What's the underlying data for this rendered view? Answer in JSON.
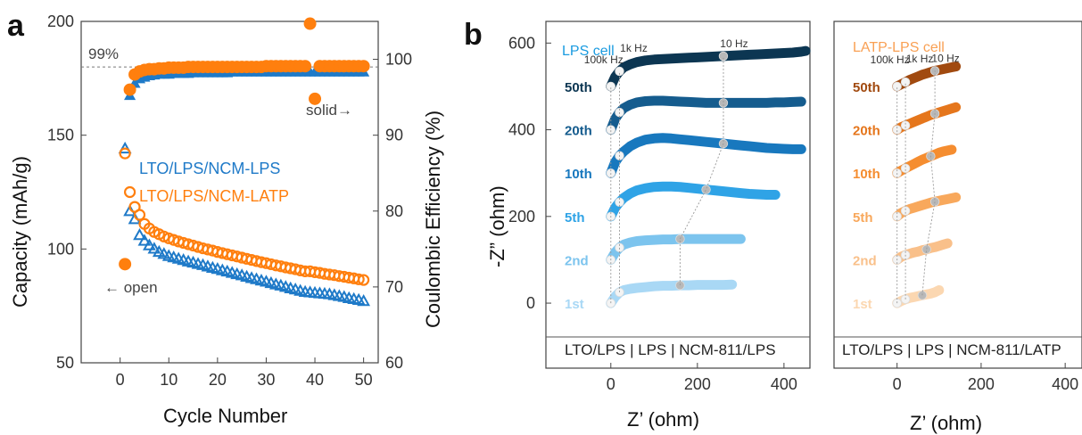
{
  "colors": {
    "blue": "#1f7ac8",
    "orange": "#ff7f0e",
    "lps_cycle_colors": [
      "#a9d8f5",
      "#7cc4ee",
      "#2fa3e6",
      "#1878be",
      "#155c8e",
      "#0c3652"
    ],
    "latp_cycle_colors": [
      "#fbd7b1",
      "#f9c08a",
      "#f8a85c",
      "#f58d30",
      "#e5761c",
      "#a14a10"
    ]
  },
  "chart_data": [
    {
      "type": "scatter",
      "panel_label": "a",
      "xlabel": "Cycle Number",
      "ylabel": "Capacity (mAh/g)",
      "ylabel_right": "Coulombic Efficiency (%)",
      "xlim": [
        -8,
        53
      ],
      "ylim": [
        50,
        200
      ],
      "ylim_right": [
        60,
        105
      ],
      "xticks": [
        0,
        10,
        20,
        30,
        40,
        50
      ],
      "yticks": [
        50,
        100,
        150,
        200
      ],
      "yticks_right": [
        60,
        70,
        80,
        90,
        100
      ],
      "reference_line": {
        "label": "99%",
        "value": 99
      },
      "annotations": {
        "open": "← open",
        "solid": "solid→"
      },
      "series": [
        {
          "name": "LTO/LPS/NCM-LPS",
          "marker": "triangle",
          "axis": "left",
          "x": [
            1,
            2,
            3,
            4,
            5,
            6,
            7,
            8,
            9,
            10,
            11,
            12,
            13,
            14,
            15,
            16,
            17,
            18,
            19,
            20,
            21,
            22,
            23,
            24,
            25,
            26,
            27,
            28,
            29,
            30,
            31,
            32,
            33,
            34,
            35,
            36,
            37,
            38,
            39,
            40,
            41,
            42,
            43,
            44,
            45,
            46,
            47,
            48,
            49,
            50
          ],
          "values": [
            144.0,
            116.5,
            113.0,
            106.0,
            103.5,
            101.5,
            100.0,
            98.6,
            97.7,
            96.8,
            96.2,
            95.6,
            95.0,
            94.4,
            93.9,
            93.3,
            92.8,
            92.2,
            91.6,
            91.1,
            90.5,
            90.0,
            89.4,
            88.8,
            88.3,
            87.7,
            87.1,
            86.6,
            86.0,
            85.5,
            84.9,
            84.3,
            83.8,
            83.2,
            82.6,
            82.1,
            81.5,
            81.0,
            80.8,
            80.6,
            80.4,
            80.2,
            80.0,
            79.6,
            79.2,
            78.8,
            78.3,
            77.9,
            77.5,
            77.0
          ]
        },
        {
          "name": "LTO/LPS/NCM-LATP",
          "marker": "circle",
          "axis": "left",
          "x": [
            1,
            2,
            3,
            4,
            5,
            6,
            7,
            8,
            9,
            10,
            11,
            12,
            13,
            14,
            15,
            16,
            17,
            18,
            19,
            20,
            21,
            22,
            23,
            24,
            25,
            26,
            27,
            28,
            29,
            30,
            31,
            32,
            33,
            34,
            35,
            36,
            37,
            38,
            39,
            40,
            41,
            42,
            43,
            44,
            45,
            46,
            47,
            48,
            49,
            50
          ],
          "values": [
            142.0,
            125.0,
            118.5,
            115.0,
            111.0,
            109.0,
            107.5,
            106.5,
            105.5,
            104.7,
            104.0,
            103.3,
            102.7,
            102.1,
            101.5,
            100.9,
            100.3,
            99.8,
            99.3,
            98.7,
            98.2,
            97.7,
            97.2,
            96.7,
            96.2,
            95.7,
            95.2,
            94.7,
            94.2,
            93.8,
            93.3,
            92.8,
            92.4,
            91.9,
            91.5,
            91.1,
            90.6,
            90.2,
            90.2,
            89.8,
            89.5,
            89.1,
            88.8,
            88.5,
            88.1,
            87.8,
            87.4,
            87.1,
            86.7,
            86.4
          ]
        },
        {
          "name": "LTO/LPS/NCM-LPS Coulombic efficiency",
          "marker": "filled-triangle",
          "axis": "right",
          "x": [
            2,
            3,
            4,
            5,
            6,
            7,
            8,
            9,
            10,
            11,
            12,
            13,
            14,
            15,
            16,
            17,
            18,
            19,
            20,
            21,
            22,
            23,
            24,
            25,
            26,
            27,
            28,
            29,
            30,
            31,
            32,
            33,
            34,
            35,
            36,
            37,
            38,
            39,
            40,
            41,
            42,
            43,
            44,
            45,
            46,
            47,
            48,
            49,
            50
          ],
          "values": [
            95.2,
            96.8,
            97.4,
            97.6,
            97.8,
            97.9,
            98.0,
            98.0,
            98.0,
            98.1,
            98.1,
            98.1,
            98.1,
            98.2,
            98.2,
            98.2,
            98.2,
            98.2,
            98.2,
            98.2,
            98.2,
            98.3,
            98.3,
            98.3,
            98.3,
            98.3,
            98.3,
            98.3,
            98.3,
            98.3,
            98.3,
            98.3,
            98.3,
            98.3,
            98.3,
            98.3,
            98.3,
            98.3,
            98.3,
            98.3,
            98.3,
            98.3,
            98.3,
            98.3,
            98.3,
            98.3,
            98.3,
            98.3,
            98.3
          ]
        },
        {
          "name": "LTO/LPS/NCM-LATP Coulombic efficiency",
          "marker": "filled-circle",
          "axis": "right",
          "x": [
            1,
            2,
            3,
            4,
            5,
            6,
            7,
            8,
            9,
            10,
            11,
            12,
            13,
            14,
            15,
            16,
            17,
            18,
            19,
            20,
            21,
            22,
            23,
            24,
            25,
            26,
            27,
            28,
            29,
            30,
            31,
            32,
            33,
            34,
            35,
            36,
            37,
            38,
            39,
            40,
            41,
            42,
            43,
            44,
            45,
            46,
            47,
            48,
            49,
            50
          ],
          "values": [
            73.0,
            96.0,
            98.0,
            98.4,
            98.6,
            98.7,
            98.7,
            98.8,
            98.8,
            98.9,
            98.9,
            98.9,
            98.9,
            99.0,
            99.0,
            99.0,
            99.0,
            99.0,
            99.0,
            99.0,
            99.0,
            99.0,
            99.0,
            99.0,
            99.0,
            99.0,
            99.0,
            99.0,
            99.0,
            99.1,
            99.1,
            99.1,
            99.1,
            99.1,
            99.1,
            99.1,
            99.1,
            99.1,
            104.7,
            94.8,
            99.1,
            99.1,
            99.1,
            99.1,
            99.1,
            99.1,
            99.1,
            99.1,
            99.1,
            99.1
          ]
        }
      ]
    },
    {
      "type": "scatter",
      "panel_label": "b",
      "title": "LPS cell",
      "xlabel": "Z’ (ohm)",
      "ylabel": "-Z” (ohm)",
      "xlim": [
        -150,
        460
      ],
      "ylim": [
        -150,
        650
      ],
      "xticks": [
        0,
        200,
        400
      ],
      "yticks": [
        0,
        200,
        400,
        600
      ],
      "bottom_label": "LTO/LPS | LPS | NCM-811/LPS",
      "frequency_labels": [
        {
          "text": "100k Hz"
        },
        {
          "text": "1k Hz"
        },
        {
          "text": "10 Hz"
        }
      ],
      "series": [
        {
          "name": "1st",
          "offset": 0,
          "x": [
            0,
            10,
            20,
            30,
            45,
            60,
            80,
            100,
            120,
            140,
            160,
            180,
            200,
            220,
            240,
            260,
            280
          ],
          "values": [
            0,
            15,
            25,
            30,
            33,
            35,
            37,
            39,
            40,
            40,
            41,
            41,
            42,
            42,
            42,
            42,
            43
          ]
        },
        {
          "name": "2nd",
          "offset": 100,
          "x": [
            0,
            10,
            20,
            30,
            45,
            60,
            80,
            100,
            120,
            140,
            160,
            180,
            200,
            220,
            240,
            260,
            280,
            300
          ],
          "values": [
            100,
            117,
            128,
            135,
            140,
            143,
            145,
            146,
            147,
            147,
            148,
            148,
            148,
            148,
            148,
            148,
            148,
            148
          ]
        },
        {
          "name": "5th",
          "offset": 200,
          "x": [
            0,
            10,
            20,
            30,
            45,
            60,
            80,
            100,
            120,
            140,
            160,
            180,
            200,
            220,
            240,
            260,
            280,
            300,
            320,
            340,
            360,
            380
          ],
          "values": [
            200,
            220,
            233,
            243,
            253,
            260,
            265,
            268,
            269,
            269,
            268,
            266,
            264,
            262,
            260,
            258,
            256,
            254,
            252,
            251,
            250,
            250
          ]
        },
        {
          "name": "10th",
          "offset": 300,
          "x": [
            0,
            10,
            20,
            30,
            45,
            60,
            80,
            100,
            120,
            140,
            160,
            180,
            200,
            220,
            240,
            260,
            280,
            300,
            320,
            340,
            360,
            380,
            400,
            420,
            440
          ],
          "values": [
            300,
            325,
            340,
            350,
            362,
            370,
            377,
            380,
            381,
            380,
            378,
            376,
            374,
            372,
            370,
            368,
            366,
            364,
            362,
            360,
            358,
            357,
            356,
            355,
            355
          ]
        },
        {
          "name": "20th",
          "offset": 400,
          "x": [
            0,
            10,
            20,
            30,
            45,
            60,
            80,
            100,
            120,
            140,
            160,
            180,
            200,
            220,
            240,
            260,
            280,
            300,
            320,
            340,
            360,
            380,
            400,
            420,
            440
          ],
          "values": [
            400,
            425,
            440,
            450,
            458,
            463,
            466,
            467,
            467,
            466,
            465,
            464,
            463,
            462,
            462,
            462,
            462,
            462,
            462,
            462,
            462,
            463,
            463,
            464,
            465
          ]
        },
        {
          "name": "50th",
          "offset": 500,
          "x": [
            0,
            10,
            20,
            30,
            45,
            60,
            80,
            100,
            120,
            140,
            160,
            180,
            200,
            220,
            240,
            260,
            280,
            300,
            320,
            340,
            360,
            380,
            400,
            420,
            440,
            450
          ],
          "values": [
            500,
            522,
            535,
            544,
            551,
            556,
            560,
            562,
            563,
            564,
            565,
            566,
            567,
            568,
            569,
            570,
            571,
            572,
            573,
            574,
            575,
            576,
            577,
            578,
            580,
            582
          ]
        }
      ]
    },
    {
      "type": "scatter",
      "title": "LATP-LPS cell",
      "xlabel": "Z’ (ohm)",
      "xlim": [
        -150,
        440
      ],
      "ylim": [
        -150,
        650
      ],
      "xticks": [
        0,
        200,
        400
      ],
      "bottom_label": "LTO/LPS | LPS | NCM-811/LATP",
      "frequency_labels": [
        {
          "text": "100k Hz"
        },
        {
          "text": "1k Hz"
        },
        {
          "text": "10 Hz"
        }
      ],
      "series": [
        {
          "name": "1st",
          "offset": 0,
          "x": [
            0,
            10,
            20,
            30,
            40,
            50,
            60,
            70,
            80,
            90,
            100
          ],
          "values": [
            0,
            5,
            9,
            12,
            14,
            16,
            18,
            20,
            22,
            25,
            30
          ]
        },
        {
          "name": "2nd",
          "offset": 100,
          "x": [
            0,
            10,
            20,
            30,
            40,
            50,
            60,
            70,
            80,
            90,
            100,
            110,
            120
          ],
          "values": [
            100,
            107,
            111,
            114,
            117,
            119,
            122,
            124,
            127,
            129,
            132,
            135,
            138
          ]
        },
        {
          "name": "5th",
          "offset": 200,
          "x": [
            0,
            10,
            20,
            30,
            40,
            50,
            60,
            70,
            80,
            90,
            100,
            110,
            120,
            130,
            140
          ],
          "values": [
            200,
            208,
            213,
            217,
            220,
            223,
            226,
            229,
            232,
            234,
            236,
            238,
            240,
            242,
            244
          ]
        },
        {
          "name": "10th",
          "offset": 300,
          "x": [
            0,
            10,
            20,
            30,
            40,
            50,
            60,
            70,
            80,
            90,
            100,
            110,
            120,
            130
          ],
          "values": [
            300,
            306,
            311,
            316,
            321,
            326,
            331,
            335,
            339,
            343,
            347,
            350,
            352,
            354
          ]
        },
        {
          "name": "20th",
          "offset": 400,
          "x": [
            0,
            10,
            20,
            30,
            40,
            50,
            60,
            70,
            80,
            90,
            100,
            110,
            120,
            130,
            140
          ],
          "values": [
            400,
            406,
            410,
            414,
            418,
            422,
            426,
            430,
            434,
            437,
            440,
            443,
            446,
            449,
            452
          ]
        },
        {
          "name": "50th",
          "offset": 500,
          "x": [
            0,
            10,
            20,
            30,
            40,
            50,
            60,
            70,
            80,
            90,
            100,
            110,
            120,
            130,
            140
          ],
          "values": [
            500,
            505,
            510,
            515,
            519,
            523,
            527,
            530,
            533,
            536,
            538,
            540,
            542,
            544,
            546
          ]
        }
      ]
    }
  ]
}
